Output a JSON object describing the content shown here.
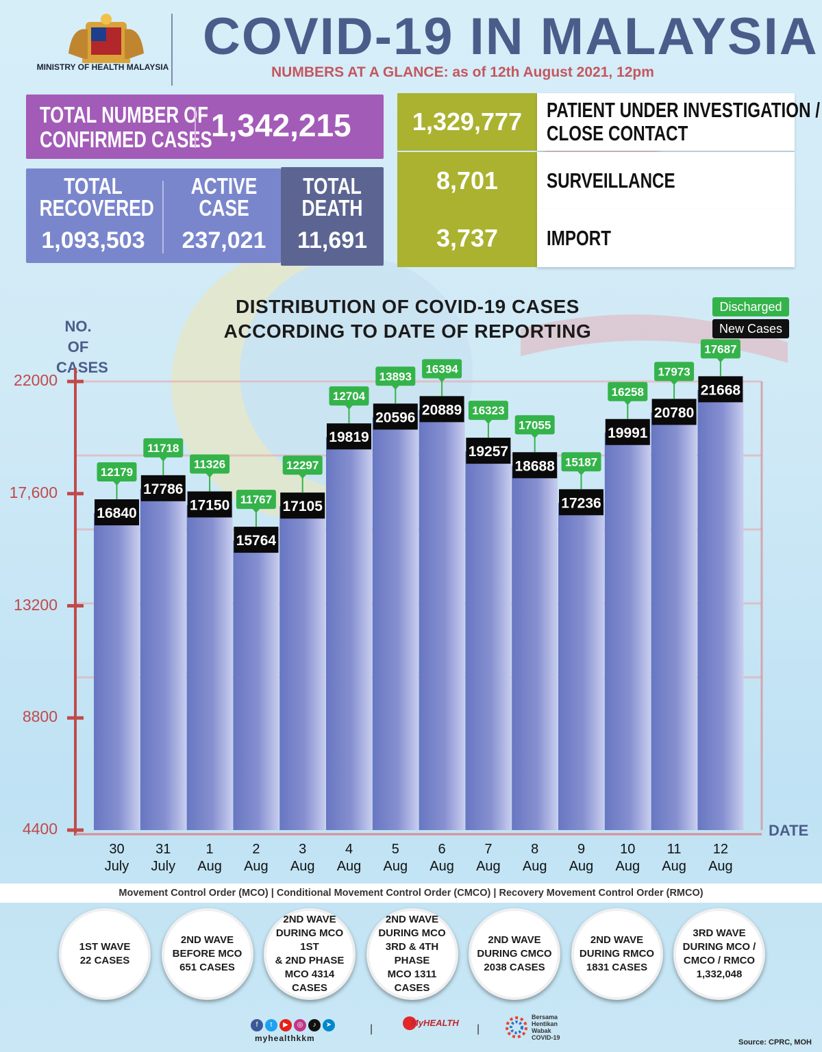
{
  "header": {
    "ministry": "MINISTRY OF HEALTH MALAYSIA",
    "title": "COVID-19 IN MALAYSIA",
    "subtitle": "NUMBERS AT A GLANCE: as of 12th August 2021, 12pm"
  },
  "summary": {
    "confirmed_label_1": "TOTAL NUMBER OF",
    "confirmed_label_2": "CONFIRMED CASES",
    "confirmed_value": "1,342,215",
    "recovered_label_1": "TOTAL",
    "recovered_label_2": "RECOVERED",
    "recovered_value": "1,093,503",
    "active_label_1": "ACTIVE",
    "active_label_2": "CASE",
    "active_value": "237,021",
    "death_label_1": "TOTAL",
    "death_label_2": "DEATH",
    "death_value": "11,691",
    "pui_value": "1,329,777",
    "pui_label_1": "PATIENT UNDER INVESTIGATION /",
    "pui_label_2": "CLOSE CONTACT",
    "surveillance_value": "8,701",
    "surveillance_label": "SURVEILLANCE",
    "import_value": "3,737",
    "import_label": "IMPORT"
  },
  "chart_labels": {
    "yaxis_1": "NO. OF",
    "yaxis_2": "CASES",
    "xaxis": "DATE",
    "legend_discharged": "Discharged",
    "legend_new": "New Cases"
  },
  "chart_data": {
    "type": "bar",
    "title": "DISTRIBUTION OF COVID-19 CASES ACCORDING TO DATE OF REPORTING",
    "title_line_1": "DISTRIBUTION OF COVID-19 CASES",
    "title_line_2": "ACCORDING TO DATE OF REPORTING",
    "categories": [
      "30 July",
      "31 July",
      "1 Aug",
      "2 Aug",
      "3 Aug",
      "4 Aug",
      "5 Aug",
      "6 Aug",
      "7 Aug",
      "8 Aug",
      "9 Aug",
      "10 Aug",
      "11 Aug",
      "12 Aug"
    ],
    "category_lines": [
      [
        "30",
        "July"
      ],
      [
        "31",
        "July"
      ],
      [
        "1",
        "Aug"
      ],
      [
        "2",
        "Aug"
      ],
      [
        "3",
        "Aug"
      ],
      [
        "4",
        "Aug"
      ],
      [
        "5",
        "Aug"
      ],
      [
        "6",
        "Aug"
      ],
      [
        "7",
        "Aug"
      ],
      [
        "8",
        "Aug"
      ],
      [
        "9",
        "Aug"
      ],
      [
        "10",
        "Aug"
      ],
      [
        "11",
        "Aug"
      ],
      [
        "12",
        "Aug"
      ]
    ],
    "series": [
      {
        "name": "New Cases",
        "values": [
          16840,
          17786,
          17150,
          15764,
          17105,
          19819,
          20596,
          20889,
          19257,
          18688,
          17236,
          19991,
          20780,
          21668
        ]
      },
      {
        "name": "Discharged",
        "values": [
          12179,
          11718,
          11326,
          11767,
          12297,
          12704,
          13893,
          16394,
          16323,
          17055,
          15187,
          16258,
          17973,
          17687
        ]
      }
    ],
    "yticks": [
      "22000",
      "17,600",
      "13200",
      "8800",
      "4400"
    ],
    "ytick_values": [
      22000,
      17600,
      13200,
      8800,
      4400
    ],
    "ylim": [
      4400,
      22000
    ],
    "colors": {
      "bar": "#7682c8",
      "new_label": "#111111",
      "discharged_label": "#34b34a",
      "axis": "#c04a4a"
    }
  },
  "footer": {
    "mco_line": "Movement Control Order (MCO) | Conditional Movement Control Order (CMCO) | Recovery Movement Control Order (RMCO)",
    "waves": [
      "1ST WAVE\n22 CASES",
      "2ND WAVE\nBEFORE MCO\n651 CASES",
      "2ND WAVE\nDURING MCO 1ST\n& 2ND PHASE\nMCO 4314\nCASES",
      "2ND WAVE\nDURING MCO\n3RD & 4TH PHASE\nMCO 1311\nCASES",
      "2ND WAVE\nDURING CMCO\n2038 CASES",
      "2ND WAVE\nDURING RMCO\n1831 CASES",
      "3RD WAVE\nDURING MCO /\nCMCO / RMCO\n1,332,048"
    ],
    "handle": "myhealthkkm",
    "myhealth": "MyHEALTH",
    "bersama": "Bersama Hentikan Wabak COVID-19",
    "source": "Source: CPRC, MOH"
  }
}
